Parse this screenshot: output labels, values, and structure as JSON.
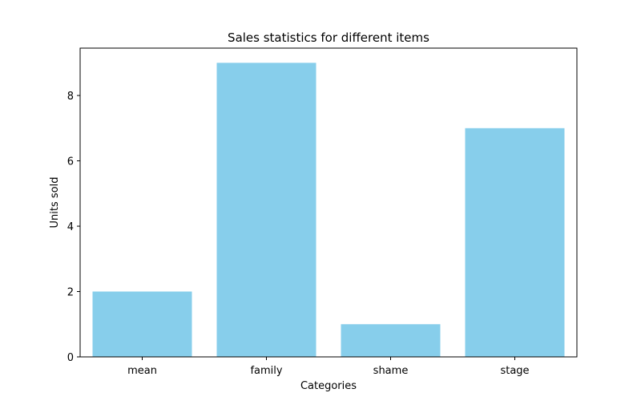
{
  "chart_data": {
    "type": "bar",
    "title": "Sales statistics for different items",
    "xlabel": "Categories",
    "ylabel": "Units sold",
    "categories": [
      "mean",
      "family",
      "shame",
      "stage"
    ],
    "values": [
      2,
      9,
      1,
      7
    ],
    "ylim": [
      0,
      9.45
    ],
    "yticks": [
      0,
      2,
      4,
      6,
      8
    ],
    "grid": false,
    "bar_color": "#87CEEB"
  }
}
